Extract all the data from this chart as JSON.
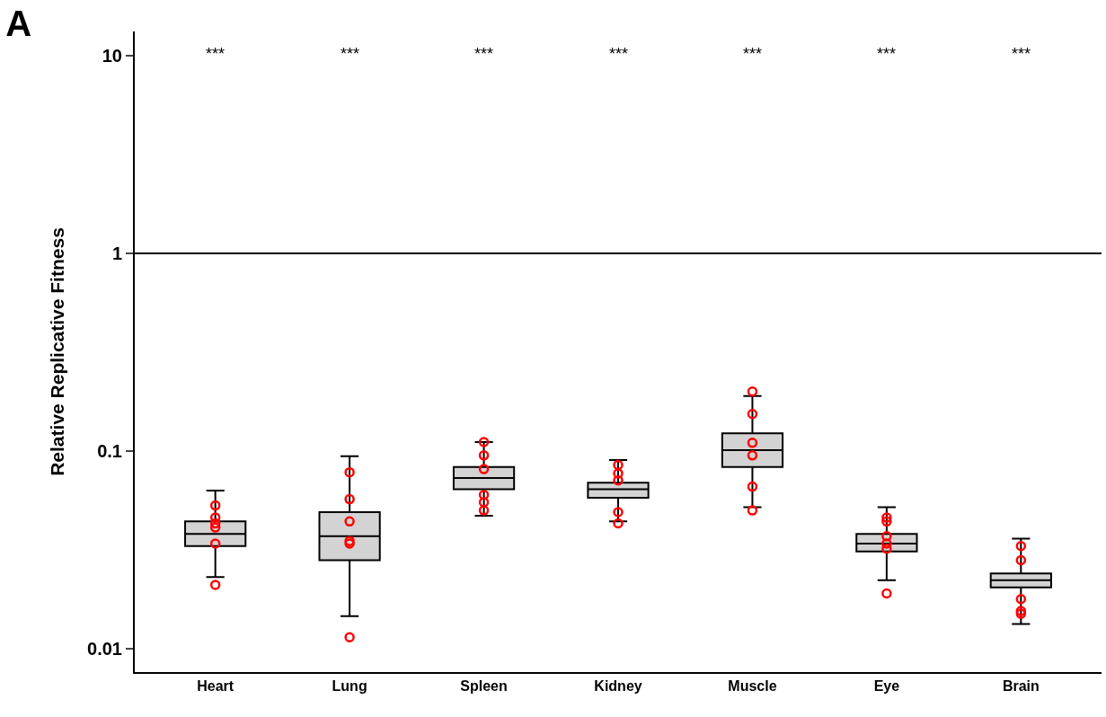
{
  "chart_data": {
    "type": "box",
    "title": "A",
    "ylabel": "Relative Replicative Fitness",
    "categories": [
      "Heart",
      "Lung",
      "Spleen",
      "Kidney",
      "Muscle",
      "Eye",
      "Brain"
    ],
    "log": "y",
    "ylim": [
      0.0076,
      13.3
    ],
    "yticks": [
      0.01,
      0.1,
      1,
      10
    ],
    "grid": false,
    "ref_lines": [
      {
        "axis": "y",
        "value": 1,
        "color": "#000000"
      }
    ],
    "annotations": [
      "***",
      "***",
      "***",
      "***",
      "***",
      "***",
      "***"
    ],
    "series": [
      {
        "color": "#d3d3d3",
        "boxes": [
          {
            "low": 0.023,
            "q1": 0.033,
            "median": 0.038,
            "q3": 0.044,
            "high": 0.063
          },
          {
            "low": 0.0146,
            "q1": 0.028,
            "median": 0.037,
            "q3": 0.049,
            "high": 0.094
          },
          {
            "low": 0.047,
            "q1": 0.064,
            "median": 0.073,
            "q3": 0.083,
            "high": 0.111
          },
          {
            "low": 0.044,
            "q1": 0.058,
            "median": 0.064,
            "q3": 0.069,
            "high": 0.09
          },
          {
            "low": 0.052,
            "q1": 0.083,
            "median": 0.101,
            "q3": 0.123,
            "high": 0.19
          },
          {
            "low": 0.0222,
            "q1": 0.031,
            "median": 0.034,
            "q3": 0.038,
            "high": 0.052
          },
          {
            "low": 0.0133,
            "q1": 0.0204,
            "median": 0.0222,
            "q3": 0.024,
            "high": 0.036
          }
        ]
      },
      {
        "type": "scatter",
        "color": "#ff0000",
        "marker": "circle",
        "x": [
          "Heart",
          "Heart",
          "Heart",
          "Heart",
          "Heart",
          "Heart",
          "Lung",
          "Lung",
          "Lung",
          "Lung",
          "Lung",
          "Lung",
          "Spleen",
          "Spleen",
          "Spleen",
          "Spleen",
          "Spleen",
          "Spleen",
          "Kidney",
          "Kidney",
          "Kidney",
          "Kidney",
          "Kidney",
          "Muscle",
          "Muscle",
          "Muscle",
          "Muscle",
          "Muscle",
          "Muscle",
          "Eye",
          "Eye",
          "Eye",
          "Eye",
          "Eye",
          "Eye",
          "Brain",
          "Brain",
          "Brain",
          "Brain",
          "Brain"
        ],
        "values": [
          0.043,
          0.046,
          0.053,
          0.041,
          0.034,
          0.021,
          0.057,
          0.078,
          0.044,
          0.035,
          0.034,
          0.0114,
          0.111,
          0.095,
          0.081,
          0.06,
          0.055,
          0.05,
          0.085,
          0.077,
          0.071,
          0.049,
          0.043,
          0.2,
          0.154,
          0.11,
          0.095,
          0.066,
          0.05,
          0.034,
          0.032,
          0.037,
          0.044,
          0.046,
          0.019,
          0.033,
          0.028,
          0.0178,
          0.0155,
          0.015
        ]
      }
    ]
  }
}
